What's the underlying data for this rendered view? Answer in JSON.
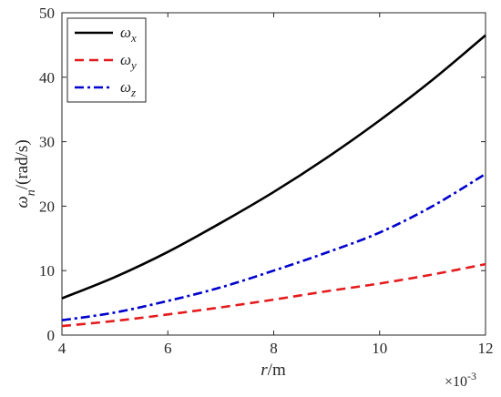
{
  "chart_data": {
    "type": "line",
    "title": "",
    "xlabel": {
      "var": "r",
      "unit": "/m"
    },
    "ylabel": {
      "var": "ω",
      "sub": "n",
      "unit": "/(rad/s)"
    },
    "x_multiplier": {
      "base": "×10",
      "exp": "-3"
    },
    "xlim": [
      4,
      12
    ],
    "ylim": [
      0,
      50
    ],
    "xticks": [
      4,
      6,
      8,
      10,
      12
    ],
    "yticks": [
      0,
      10,
      20,
      30,
      40,
      50
    ],
    "grid": false,
    "legend": "top-left",
    "x": [
      4,
      5,
      6,
      7,
      8,
      9,
      10,
      11,
      12
    ],
    "series": [
      {
        "name": "ω",
        "sub": "x",
        "color": "#000000",
        "style": "solid",
        "values": [
          5.7,
          9.0,
          12.9,
          17.4,
          22.2,
          27.5,
          33.3,
          39.6,
          46.5
        ]
      },
      {
        "name": "ω",
        "sub": "y",
        "color": "#e41a1c",
        "style": "dashed",
        "values": [
          1.4,
          2.2,
          3.2,
          4.3,
          5.5,
          6.8,
          8.0,
          9.4,
          11.0
        ]
      },
      {
        "name": "ω",
        "sub": "z",
        "color": "#0000cd",
        "style": "dashdot",
        "values": [
          2.3,
          3.5,
          5.3,
          7.4,
          10.0,
          12.8,
          15.9,
          20.0,
          25.0
        ]
      }
    ]
  }
}
